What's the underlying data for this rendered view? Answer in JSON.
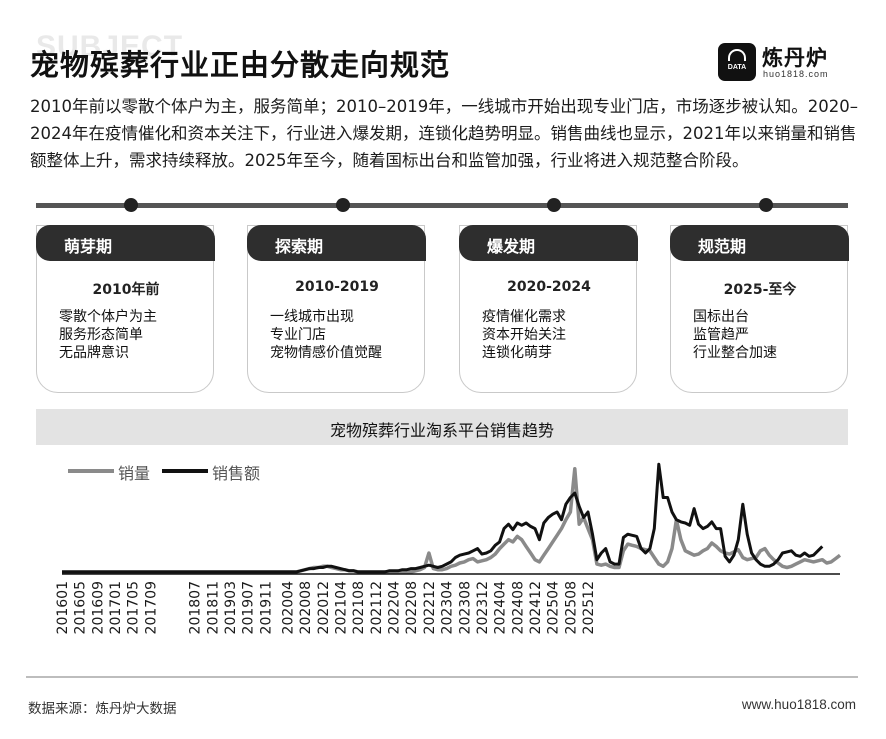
{
  "watermark_text": "SUBJECT",
  "title": "宠物殡葬行业正由分散走向规范",
  "brand": {
    "name": "炼丹炉",
    "url": "huo1818.com",
    "mark_text": "DATA"
  },
  "intro": "2010年前以零散个体户为主，服务简单；2010–2019年，一线城市开始出现专业门店，市场逐步被认知。2020–2024年在疫情催化和资本关注下，行业进入爆发期，连锁化趋势明显。销售曲线也显示，2021年以来销量和销售额整体上升，需求持续释放。2025年至今，随着国标出台和监管加强，行业将进入规范整合阶段。",
  "stages": [
    {
      "name": "萌芽期",
      "period": "2010年前",
      "points": [
        "零散个体户为主",
        "服务形态简单",
        "无品牌意识"
      ]
    },
    {
      "name": "探索期",
      "period": "2010-2019",
      "points": [
        "一线城市出现",
        "专业门店",
        "宠物情感价值觉醒"
      ]
    },
    {
      "name": "爆发期",
      "period": "2020-2024",
      "points": [
        "疫情催化需求",
        "资本开始关注",
        "连锁化萌芽"
      ]
    },
    {
      "name": "规范期",
      "period": "2025-至今",
      "points": [
        "国标出台",
        "监管趋严",
        "行业整合加速"
      ]
    }
  ],
  "colors": {
    "dark": "#111111",
    "gray": "#8a8a8a",
    "header": "#2e2e2e",
    "band": "#e3e3e3"
  },
  "chart_data": {
    "type": "line",
    "title": "宠物殡葬行业淘系平台销售趋势",
    "xlabel": "",
    "ylabel": "",
    "grid": false,
    "legend": "top-left",
    "x_tick_labels": [
      "201601",
      "201605",
      "201609",
      "201701",
      "201705",
      "201709",
      "201807",
      "201811",
      "201903",
      "201907",
      "201911",
      "202004",
      "202008",
      "202012",
      "202104",
      "202108",
      "202112",
      "202204",
      "202208",
      "202212",
      "202304",
      "202308",
      "202312",
      "202404",
      "202408",
      "202412",
      "202504",
      "202508",
      "202512"
    ],
    "x_start": "2016-01",
    "ylim": [
      0,
      100
    ],
    "series": [
      {
        "name": "销量",
        "color": "#8a8a8a",
        "values": [
          1,
          1,
          1,
          1,
          1,
          1,
          1,
          1,
          1,
          1,
          1,
          1,
          1,
          1,
          1,
          1,
          1,
          1,
          1,
          1,
          1,
          1,
          1,
          1,
          1,
          1,
          1,
          1,
          1,
          1,
          1,
          1,
          1,
          1,
          1,
          1,
          1,
          1,
          1,
          1,
          1,
          1,
          1,
          1,
          1,
          1,
          1,
          1,
          1,
          1,
          1,
          1,
          1,
          1,
          2,
          3,
          4,
          5,
          5,
          6,
          6,
          5,
          4,
          3,
          3,
          2,
          2,
          1,
          1,
          1,
          1,
          1,
          1,
          1,
          1,
          1,
          1,
          1,
          1,
          1,
          2,
          3,
          5,
          18,
          4,
          3,
          3,
          4,
          6,
          7,
          9,
          10,
          12,
          13,
          10,
          11,
          12,
          14,
          17,
          22,
          26,
          30,
          28,
          33,
          30,
          24,
          18,
          12,
          10,
          16,
          22,
          28,
          34,
          40,
          48,
          55,
          94,
          44,
          50,
          40,
          30,
          8,
          7,
          8,
          6,
          5,
          5,
          20,
          26,
          25,
          24,
          22,
          21,
          20,
          14,
          8,
          6,
          10,
          22,
          48,
          30,
          20,
          18,
          16,
          17,
          20,
          22,
          27,
          24,
          20,
          18,
          17,
          19,
          21,
          14,
          12,
          13,
          14,
          20,
          22,
          16,
          12,
          9,
          6,
          5,
          6,
          8,
          10,
          12,
          11,
          10,
          11,
          12,
          9,
          10,
          13,
          16
        ]
      },
      {
        "name": "销售额",
        "color": "#111111",
        "values": [
          1,
          1,
          1,
          1,
          1,
          1,
          1,
          1,
          1,
          1,
          1,
          1,
          1,
          1,
          1,
          1,
          1,
          1,
          1,
          1,
          1,
          1,
          1,
          1,
          1,
          1,
          1,
          1,
          1,
          1,
          1,
          1,
          1,
          1,
          1,
          1,
          1,
          1,
          1,
          1,
          1,
          1,
          1,
          1,
          1,
          1,
          1,
          1,
          1,
          1,
          1,
          1,
          1,
          1,
          2,
          3,
          4,
          4,
          5,
          5,
          6,
          6,
          5,
          4,
          3,
          2,
          2,
          1,
          1,
          1,
          1,
          1,
          1,
          1,
          2,
          2,
          2,
          3,
          3,
          4,
          4,
          5,
          6,
          7,
          6,
          5,
          6,
          8,
          10,
          14,
          16,
          17,
          18,
          20,
          22,
          17,
          18,
          20,
          25,
          28,
          40,
          44,
          39,
          45,
          43,
          45,
          42,
          40,
          30,
          45,
          50,
          53,
          55,
          48,
          62,
          68,
          72,
          60,
          50,
          55,
          35,
          12,
          18,
          22,
          10,
          8,
          8,
          32,
          35,
          34,
          33,
          22,
          18,
          22,
          40,
          98,
          68,
          68,
          55,
          48,
          46,
          45,
          43,
          58,
          44,
          40,
          42,
          46,
          40,
          40,
          15,
          10,
          16,
          30,
          62,
          35,
          18,
          12,
          8,
          6,
          6,
          8,
          12,
          18,
          19,
          20,
          16,
          15,
          18,
          15,
          16,
          20,
          24
        ]
      }
    ]
  },
  "source": "数据来源：炼丹炉大数据",
  "site": "www.huo1818.com"
}
